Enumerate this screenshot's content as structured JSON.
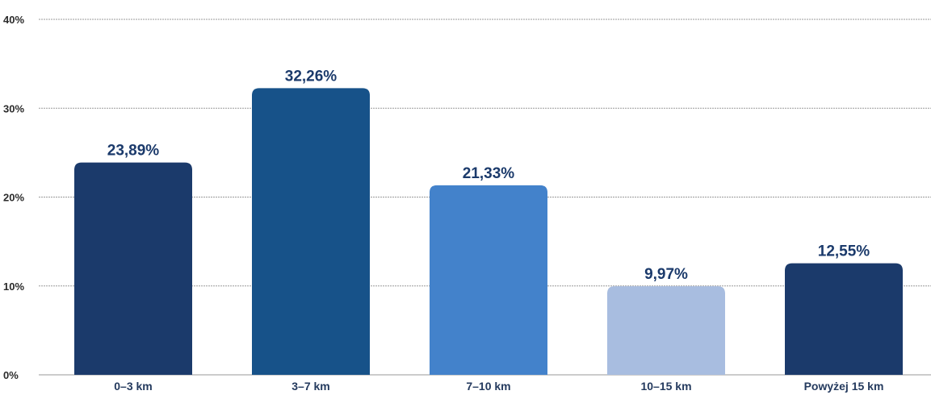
{
  "chart_data": {
    "type": "bar",
    "categories": [
      "0–3 km",
      "3–7 km",
      "7–10 km",
      "10–15 km",
      "Powyżej 15 km"
    ],
    "values": [
      23.89,
      32.26,
      21.33,
      9.97,
      12.55
    ],
    "value_labels": [
      "23,89%",
      "32,26%",
      "21,33%",
      "9,97%",
      "12,55%"
    ],
    "bar_colors": [
      "#1b3a6b",
      "#175289",
      "#4382cb",
      "#a8bde0",
      "#1b3a6b"
    ],
    "value_label_colors": [
      "#1b3a6b",
      "#1b3a6b",
      "#1b3a6b",
      "#1b3a6b",
      "#1b3a6b"
    ],
    "yticks": [
      0,
      10,
      20,
      30,
      40
    ],
    "ytick_labels": [
      "0%",
      "10%",
      "20%",
      "30%",
      "40%"
    ],
    "ylim": [
      0,
      40
    ],
    "grid": true
  }
}
